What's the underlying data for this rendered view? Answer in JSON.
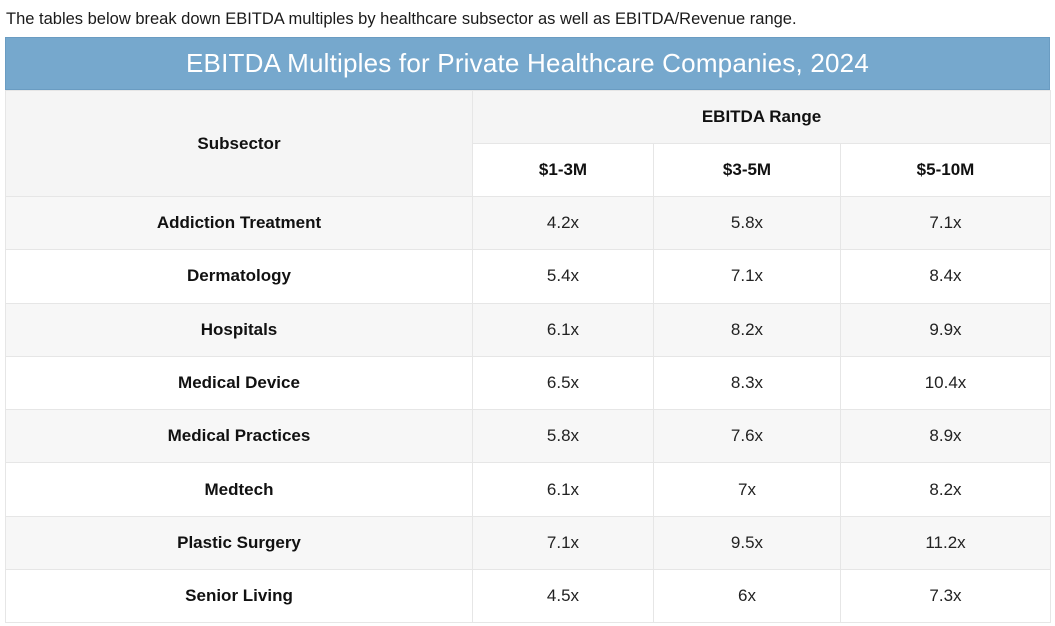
{
  "intro_text": "The tables below break down EBITDA multiples by healthcare subsector as well as EBITDA/Revenue range.",
  "colors": {
    "title_bar": "#76a8cd",
    "title_text": "#ffffff",
    "stripe": "#f7f7f7"
  },
  "chart_data": {
    "type": "table",
    "title": "EBITDA Multiples for Private Healthcare Companies, 2024",
    "row_header": "Subsector",
    "group_header": "EBITDA Range",
    "columns": [
      "$1-3M",
      "$3-5M",
      "$5-10M"
    ],
    "rows": [
      {
        "name": "Addiction Treatment",
        "values": [
          "4.2x",
          "5.8x",
          "7.1x"
        ]
      },
      {
        "name": "Dermatology",
        "values": [
          "5.4x",
          "7.1x",
          "8.4x"
        ]
      },
      {
        "name": "Hospitals",
        "values": [
          "6.1x",
          "8.2x",
          "9.9x"
        ]
      },
      {
        "name": "Medical Device",
        "values": [
          "6.5x",
          "8.3x",
          "10.4x"
        ]
      },
      {
        "name": "Medical Practices",
        "values": [
          "5.8x",
          "7.6x",
          "8.9x"
        ]
      },
      {
        "name": "Medtech",
        "values": [
          "6.1x",
          "7x",
          "8.2x"
        ]
      },
      {
        "name": "Plastic Surgery",
        "values": [
          "7.1x",
          "9.5x",
          "11.2x"
        ]
      },
      {
        "name": "Senior Living",
        "values": [
          "4.5x",
          "6x",
          "7.3x"
        ]
      }
    ]
  }
}
